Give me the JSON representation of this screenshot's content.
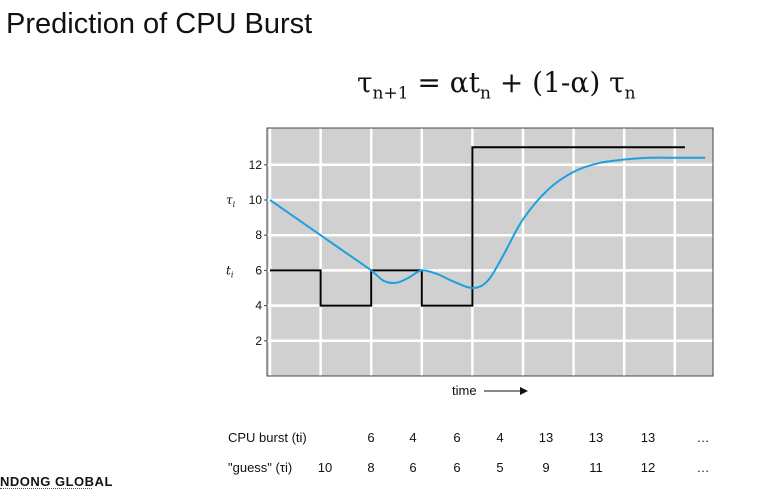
{
  "page": {
    "title": "Prediction of CPU Burst",
    "logo_text": "NDONG GLOBAL"
  },
  "formula": {
    "lhs": "τ",
    "lhs_sub": "n+1",
    "eq": " = ",
    "alpha": "α",
    "t": "t",
    "t_sub": "n",
    "plus": " + (1-",
    "alpha2": "α",
    "close": ") ",
    "tau": "τ",
    "tau_sub": "n"
  },
  "chart_data": {
    "type": "line",
    "ylim": [
      0,
      14
    ],
    "xlim": [
      0,
      8.5
    ],
    "yticks": [
      2,
      4,
      6,
      8,
      10,
      12
    ],
    "ytick_labels": [
      "2",
      "4",
      "6",
      "8",
      "10",
      "12"
    ],
    "x_gridlines": [
      0,
      1,
      2,
      3,
      4,
      5,
      6,
      7,
      8
    ],
    "grid": true,
    "background": "#d0d0d0",
    "xlabel": "time",
    "annotations": [
      {
        "text": "τi",
        "at_y": 10
      },
      {
        "text": "ti",
        "at_y": 6
      }
    ],
    "series": [
      {
        "style": "step",
        "color": "#000000",
        "segments": [
          {
            "x0": 0,
            "x1": 1,
            "y": 6
          },
          {
            "x0": 1,
            "x1": 2,
            "y": 4
          },
          {
            "x0": 2,
            "x1": 3,
            "y": 6
          },
          {
            "x0": 3,
            "x1": 4,
            "y": 4
          },
          {
            "x0": 4,
            "x1": 8.2,
            "y": 13
          }
        ]
      },
      {
        "style": "smooth",
        "color": "#1ea0e0",
        "points": [
          [
            0,
            10
          ],
          [
            0.5,
            9
          ],
          [
            1,
            8
          ],
          [
            1.5,
            7
          ],
          [
            2,
            6
          ],
          [
            2.25,
            5.4
          ],
          [
            2.5,
            5.3
          ],
          [
            2.75,
            5.6
          ],
          [
            3,
            6
          ],
          [
            3.3,
            5.8
          ],
          [
            3.6,
            5.4
          ],
          [
            4,
            5
          ],
          [
            4.3,
            5.4
          ],
          [
            4.6,
            6.8
          ],
          [
            5,
            8.9
          ],
          [
            5.5,
            10.6
          ],
          [
            6,
            11.6
          ],
          [
            6.5,
            12.1
          ],
          [
            7,
            12.3
          ],
          [
            7.5,
            12.4
          ],
          [
            8,
            12.4
          ],
          [
            8.6,
            12.4
          ]
        ]
      }
    ]
  },
  "table": {
    "row1_label": "CPU burst (ti)",
    "row2_label": "\"guess\" (τi)",
    "row1_values": [
      "6",
      "4",
      "6",
      "4",
      "13",
      "13",
      "13",
      "…"
    ],
    "row2_first": "10",
    "row2_values": [
      "8",
      "6",
      "6",
      "5",
      "9",
      "11",
      "12",
      "…"
    ]
  }
}
